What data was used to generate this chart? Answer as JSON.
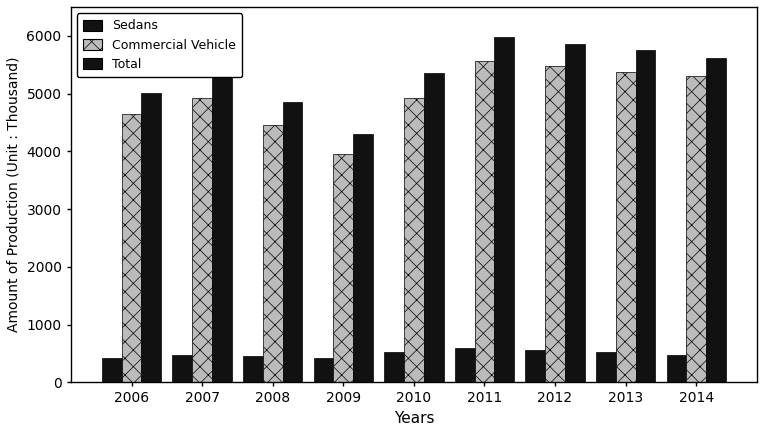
{
  "years": [
    2006,
    2007,
    2008,
    2009,
    2010,
    2011,
    2012,
    2013,
    2014
  ],
  "sedans": [
    430,
    470,
    460,
    420,
    520,
    590,
    560,
    530,
    480
  ],
  "commercial": [
    4650,
    4920,
    4450,
    3950,
    4920,
    5560,
    5480,
    5380,
    5300
  ],
  "total": [
    5010,
    5300,
    4850,
    4300,
    5350,
    5980,
    5850,
    5760,
    5620
  ],
  "bar_width": 0.28,
  "ylim": [
    0,
    6500
  ],
  "yticks": [
    0,
    1000,
    2000,
    3000,
    4000,
    5000,
    6000
  ],
  "xlabel": "Years",
  "ylabel": "Amount of Production (Unit : Thousand)",
  "legend_labels": [
    "Sedans",
    "Commercial Vehicle",
    "Total"
  ],
  "sedans_color": "#111111",
  "commercial_color": "#bbbbbb",
  "total_color": "#111111",
  "commercial_hatch": "xx",
  "background_color": "#ffffff",
  "figure_facecolor": "#ffffff",
  "tick_fontsize": 10,
  "label_fontsize": 11,
  "legend_fontsize": 9
}
